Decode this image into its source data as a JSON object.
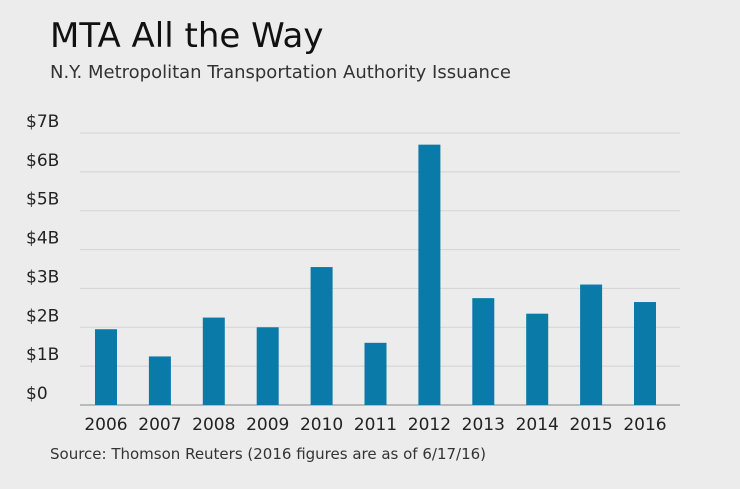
{
  "title": "MTA All the Way",
  "subtitle": "N.Y. Metropolitan Transportation Authority Issuance",
  "source": "Source: Thomson Reuters (2016 figures are as of 6/17/16)",
  "colors": {
    "bar": "#0a7ba8",
    "grid": "#d3d3d3",
    "axis": "#888888",
    "background": "#ececec"
  },
  "chart_data": {
    "type": "bar",
    "categories": [
      "2006",
      "2007",
      "2008",
      "2009",
      "2010",
      "2011",
      "2012",
      "2013",
      "2014",
      "2015",
      "2016"
    ],
    "values": [
      1.95,
      1.25,
      2.25,
      2.0,
      3.55,
      1.6,
      6.7,
      2.75,
      2.35,
      3.1,
      2.65
    ],
    "ylim": [
      0,
      7
    ],
    "yticks": [
      0,
      1,
      2,
      3,
      4,
      5,
      6,
      7
    ],
    "ytick_labels": [
      "$0",
      "$1B",
      "$2B",
      "$3B",
      "$4B",
      "$5B",
      "$6B",
      "$7B"
    ],
    "grid": true,
    "legend": "none",
    "xlabel": "",
    "ylabel": ""
  }
}
